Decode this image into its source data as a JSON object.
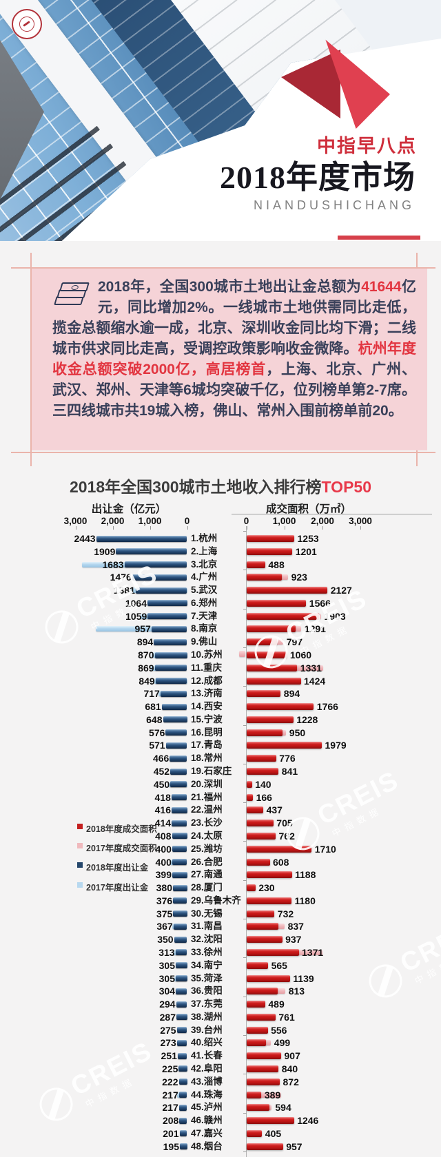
{
  "header": {
    "tagline": "中指早八点",
    "title": "2018年度市场",
    "subtitle": "NIANDUSHICHANG",
    "accent_color": "#d6404a"
  },
  "summary": {
    "segments": [
      {
        "text": "2018年，全国300城市土地出让金总额为",
        "accent": false
      },
      {
        "text": "41644",
        "accent": true
      },
      {
        "text": "亿元，同比增加2%。一线城市土地供需同比走低，揽金总额缩水逾一成，北京、深圳收金同比均下滑；二线城市供求同比走高，受调控政策影响收金微降。",
        "accent": false
      },
      {
        "text": "杭州年度收金总额突破2000亿，高居榜首",
        "accent": true
      },
      {
        "text": "，上海、北京、广州、武汉、郑州、天津等6城均突破千亿，位列榜单第2-7席。三四线城市共19城入榜，佛山、常州入围前榜单前20。",
        "accent": false
      }
    ]
  },
  "chart": {
    "title": "2018年全国300城市土地收入排行榜",
    "title_accent": "TOP50",
    "left_axis_label": "出让金（亿元）",
    "right_axis_label": "成交面积（万㎡）",
    "left_ticks": [
      "3,000",
      "2,000",
      "1,000",
      "0"
    ],
    "right_ticks": [
      "0",
      "1,000",
      "2,000",
      "3,000"
    ],
    "legend": [
      {
        "label": "2018年度成交面积",
        "color": "#c41f1f"
      },
      {
        "label": "2017年度成交面积",
        "color": "#f0b9bd"
      },
      {
        "label": "2018年度出让金",
        "color": "#24466b"
      },
      {
        "label": "2017年度出让金",
        "color": "#b7d8ef"
      }
    ]
  },
  "chart_data": {
    "type": "bar",
    "subtype": "tornado",
    "title": "2018年全国300城市土地收入排行榜TOP50",
    "left_axis_range": [
      0,
      3000
    ],
    "right_axis_range": [
      0,
      3000
    ],
    "left_unit": "亿元",
    "right_unit": "万㎡",
    "series": [
      {
        "name": "2018年度出让金",
        "axis": "left",
        "labeled": true
      },
      {
        "name": "2017年度出让金",
        "axis": "left",
        "labeled": false,
        "note": "values estimated from bar length"
      },
      {
        "name": "2018年度成交面积",
        "axis": "right",
        "labeled": true
      },
      {
        "name": "2017年度成交面积",
        "axis": "right",
        "labeled": false,
        "note": "values estimated from bar length"
      }
    ],
    "rows": [
      {
        "rank": 1,
        "city": "杭州",
        "fee2018": 2443,
        "area2018": 1253
      },
      {
        "rank": 2,
        "city": "上海",
        "fee2018": 1909,
        "area2018": 1201
      },
      {
        "rank": 3,
        "city": "北京",
        "fee2018": 1683,
        "area2018": 488,
        "fee2017_est": 2820
      },
      {
        "rank": 4,
        "city": "广州",
        "fee2018": 1476,
        "area2018": 923,
        "area2017_est": 1090
      },
      {
        "rank": 5,
        "city": "武汉",
        "fee2018": 1381,
        "area2018": 2127,
        "fee2017_est": 1510
      },
      {
        "rank": 6,
        "city": "郑州",
        "fee2018": 1064,
        "area2018": 1566
      },
      {
        "rank": 7,
        "city": "天津",
        "fee2018": 1059,
        "area2018": 1903,
        "fee2017_est": 1250,
        "area2017_est": 1960
      },
      {
        "rank": 8,
        "city": "南京",
        "fee2018": 957,
        "area2018": 1291,
        "fee2017_est": 2450,
        "area2017_est": 1440
      },
      {
        "rank": 9,
        "city": "佛山",
        "fee2018": 894,
        "area2018": 797,
        "area2017_est": 965
      },
      {
        "rank": 10,
        "city": "苏州",
        "fee2018": 870,
        "area2018": 1060,
        "fee2017_est": 950,
        "pink_notch": true
      },
      {
        "rank": 11,
        "city": "重庆",
        "fee2018": 869,
        "area2018": 1331,
        "fee2017_est": 970,
        "area2017_est": 2030
      },
      {
        "rank": 12,
        "city": "成都",
        "fee2018": 849,
        "area2018": 1424,
        "fee2017_est": 880
      },
      {
        "rank": 13,
        "city": "济南",
        "fee2018": 717,
        "area2018": 894,
        "fee2017_est": 770
      },
      {
        "rank": 14,
        "city": "西安",
        "fee2018": 681,
        "area2018": 1766
      },
      {
        "rank": 15,
        "city": "宁波",
        "fee2018": 648,
        "area2018": 1228
      },
      {
        "rank": 16,
        "city": "昆明",
        "fee2018": 576,
        "area2018": 950,
        "area2017_est": 1040
      },
      {
        "rank": 17,
        "city": "青岛",
        "fee2018": 571,
        "area2018": 1979
      },
      {
        "rank": 18,
        "city": "常州",
        "fee2018": 466,
        "area2018": 776
      },
      {
        "rank": 19,
        "city": "石家庄",
        "fee2018": 452,
        "area2018": 841
      },
      {
        "rank": 20,
        "city": "深圳",
        "fee2018": 450,
        "area2018": 140,
        "fee2017_est": 490
      },
      {
        "rank": 21,
        "city": "福州",
        "fee2018": 418,
        "area2018": 166
      },
      {
        "rank": 22,
        "city": "温州",
        "fee2018": 416,
        "area2018": 437
      },
      {
        "rank": 23,
        "city": "长沙",
        "fee2018": 414,
        "area2018": 705
      },
      {
        "rank": 24,
        "city": "太原",
        "fee2018": 408,
        "area2018": 762
      },
      {
        "rank": 25,
        "city": "潍坊",
        "fee2018": 400,
        "area2018": 1710
      },
      {
        "rank": 26,
        "city": "合肥",
        "fee2018": 400,
        "area2018": 608,
        "fee2017_est": 450
      },
      {
        "rank": 27,
        "city": "南通",
        "fee2018": 399,
        "area2018": 1188
      },
      {
        "rank": 28,
        "city": "厦门",
        "fee2018": 380,
        "area2018": 230
      },
      {
        "rank": 29,
        "city": "乌鲁木齐",
        "fee2018": 376,
        "area2018": 1180
      },
      {
        "rank": 30,
        "city": "无锡",
        "fee2018": 375,
        "area2018": 732
      },
      {
        "rank": 31,
        "city": "南昌",
        "fee2018": 367,
        "area2018": 837,
        "fee2017_est": 405,
        "area2017_est": 1000
      },
      {
        "rank": 32,
        "city": "沈阳",
        "fee2018": 350,
        "area2018": 937
      },
      {
        "rank": 33,
        "city": "徐州",
        "fee2018": 313,
        "area2018": 1371,
        "fee2017_est": 355,
        "area2017_est": 2010
      },
      {
        "rank": 34,
        "city": "南宁",
        "fee2018": 305,
        "area2018": 565
      },
      {
        "rank": 35,
        "city": "菏泽",
        "fee2018": 305,
        "area2018": 1139,
        "fee2017_est": 345
      },
      {
        "rank": 36,
        "city": "贵阳",
        "fee2018": 304,
        "area2018": 813,
        "area2017_est": 1020
      },
      {
        "rank": 37,
        "city": "东莞",
        "fee2018": 294,
        "area2018": 489
      },
      {
        "rank": 38,
        "city": "湖州",
        "fee2018": 287,
        "area2018": 761
      },
      {
        "rank": 39,
        "city": "台州",
        "fee2018": 275,
        "area2018": 556
      },
      {
        "rank": 40,
        "city": "绍兴",
        "fee2018": 273,
        "area2018": 499,
        "area2017_est": 640
      },
      {
        "rank": 41,
        "city": "长春",
        "fee2018": 251,
        "area2018": 907
      },
      {
        "rank": 42,
        "city": "阜阳",
        "fee2018": 225,
        "area2018": 840
      },
      {
        "rank": 43,
        "city": "淄博",
        "fee2018": 222,
        "area2018": 872
      },
      {
        "rank": 44,
        "city": "珠海",
        "fee2018": 217,
        "area2018": 389,
        "fee2017_est": 265,
        "area2017_est": 910
      },
      {
        "rank": 45,
        "city": "泸州",
        "fee2018": 217,
        "area2018": 594,
        "area2017_est": 670
      },
      {
        "rank": 46,
        "city": "赣州",
        "fee2018": 208,
        "area2018": 1246
      },
      {
        "rank": 47,
        "city": "嘉兴",
        "fee2018": 201,
        "area2018": 405
      },
      {
        "rank": 48,
        "city": "烟台",
        "fee2018": 195,
        "area2018": 957
      }
    ]
  },
  "watermark": {
    "text": "CREIS",
    "subtext": "中指数据"
  }
}
